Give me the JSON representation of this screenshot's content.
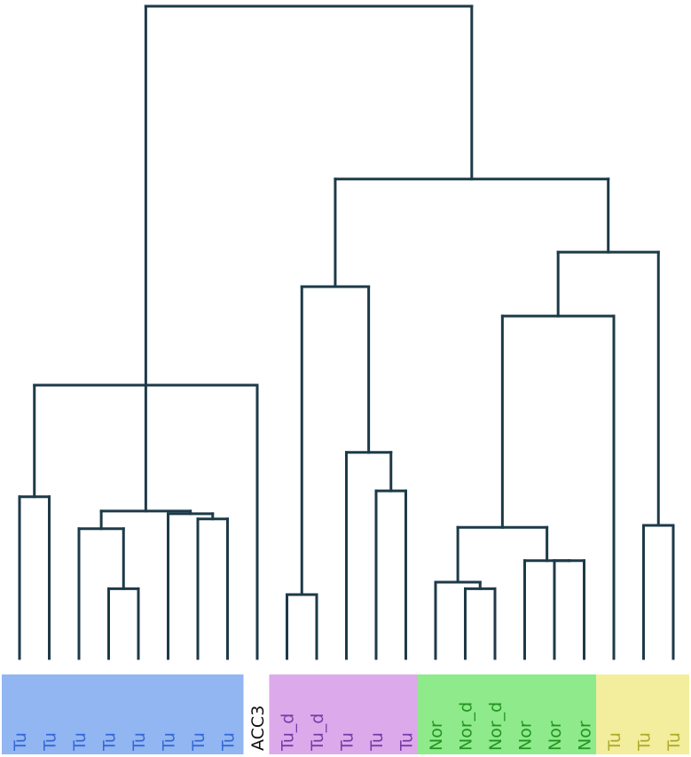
{
  "chart_data": {
    "type": "dendrogram",
    "title": "",
    "leaves": [
      {
        "label": "Tu",
        "group": "blue"
      },
      {
        "label": "Tu",
        "group": "blue"
      },
      {
        "label": "Tu",
        "group": "blue"
      },
      {
        "label": "Tu",
        "group": "blue"
      },
      {
        "label": "Tu",
        "group": "blue"
      },
      {
        "label": "Tu",
        "group": "blue"
      },
      {
        "label": "Tu",
        "group": "blue"
      },
      {
        "label": "Tu",
        "group": "blue"
      },
      {
        "label": "ACC3",
        "group": "none"
      },
      {
        "label": "Tu_d",
        "group": "purple"
      },
      {
        "label": "Tu_d",
        "group": "purple"
      },
      {
        "label": "Tu",
        "group": "purple"
      },
      {
        "label": "Tu",
        "group": "purple"
      },
      {
        "label": "Tu",
        "group": "purple"
      },
      {
        "label": "Nor",
        "group": "green"
      },
      {
        "label": "Nor_d",
        "group": "green"
      },
      {
        "label": "Nor_d",
        "group": "green"
      },
      {
        "label": "Nor",
        "group": "green"
      },
      {
        "label": "Nor",
        "group": "green"
      },
      {
        "label": "Nor",
        "group": "green"
      },
      {
        "label": "Tu",
        "group": "yellow"
      },
      {
        "label": "Tu",
        "group": "yellow"
      },
      {
        "label": "Tu",
        "group": "yellow"
      }
    ],
    "tree": {
      "h": 100,
      "children": [
        {
          "h": 41.9,
          "children": [
            {
              "h": 24.8,
              "children": [
                0,
                1
              ]
            },
            {
              "h": 22.6,
              "children": [
                {
                  "h": 19.9,
                  "children": [
                    2,
                    {
                      "h": 10.7,
                      "children": [
                        3,
                        4
                      ]
                    }
                  ]
                },
                {
                  "h": 22.2,
                  "children": [
                    5,
                    {
                      "h": 21.4,
                      "children": [
                        6,
                        7
                      ]
                    }
                  ]
                }
              ]
            },
            8
          ]
        },
        {
          "h": 73.5,
          "children": [
            {
              "h": 57.0,
              "children": [
                {
                  "h": 9.8,
                  "children": [
                    9,
                    10
                  ]
                },
                {
                  "h": 31.6,
                  "children": [
                    11,
                    {
                      "h": 25.7,
                      "children": [
                        12,
                        13
                      ]
                    }
                  ]
                }
              ]
            },
            {
              "h": 62.3,
              "children": [
                {
                  "h": 52.5,
                  "children": [
                    {
                      "h": 20.1,
                      "children": [
                        {
                          "h": 11.7,
                          "children": [
                            14,
                            {
                              "h": 10.7,
                              "children": [
                                15,
                                16
                              ]
                            }
                          ]
                        },
                        {
                          "h": 15.0,
                          "children": [
                            17,
                            {
                              "h": 15.0,
                              "children": [
                                18,
                                19
                              ]
                            }
                          ]
                        }
                      ]
                    },
                    20
                  ]
                },
                {
                  "h": 20.4,
                  "children": [
                    21,
                    22
                  ]
                }
              ]
            }
          ]
        }
      ]
    },
    "groups": {
      "blue": {
        "bg": "#92b6f2",
        "text": "#3568d6",
        "first": 0,
        "last": 7
      },
      "purple": {
        "bg": "#dcaaea",
        "text": "#7a3aa8",
        "first": 9,
        "last": 13
      },
      "green": {
        "bg": "#8eea8a",
        "text": "#229422",
        "first": 14,
        "last": 19
      },
      "yellow": {
        "bg": "#f2ee9e",
        "text": "#b0aa2a",
        "first": 20,
        "last": 22
      },
      "none": {
        "text": "#111111"
      }
    },
    "line_color": "#1d3a48"
  }
}
